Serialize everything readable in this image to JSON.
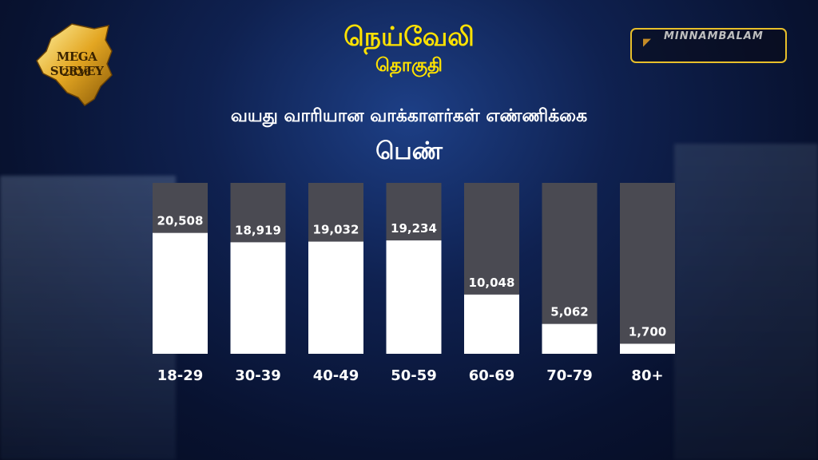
{
  "logo": {
    "line1": "MEGA SURVEY",
    "line2": "2026"
  },
  "header": {
    "title": "நெய்வேலி",
    "subtitle": "தொகுதி"
  },
  "brand": {
    "name": "MINNAMBALAM"
  },
  "colors": {
    "accent": "#ffe200",
    "bar_fill": "#ffffff",
    "bar_track": "#4a4a52",
    "brand_border": "#e8bf2a"
  },
  "chart_data": {
    "type": "bar",
    "title": "வயது வாரியான வாக்காளர்கள் எண்ணிக்கை",
    "subtitle": "பெண்",
    "categories": [
      "18-29",
      "30-39",
      "40-49",
      "50-59",
      "60-69",
      "70-79",
      "80+"
    ],
    "values": [
      20508,
      18919,
      19032,
      19234,
      10048,
      5062,
      1700
    ],
    "value_labels": [
      "20,508",
      "18,919",
      "19,032",
      "19,234",
      "10,048",
      "5,062",
      "1,700"
    ],
    "ylim": [
      0,
      29000
    ],
    "grid": false,
    "legend": "none"
  }
}
